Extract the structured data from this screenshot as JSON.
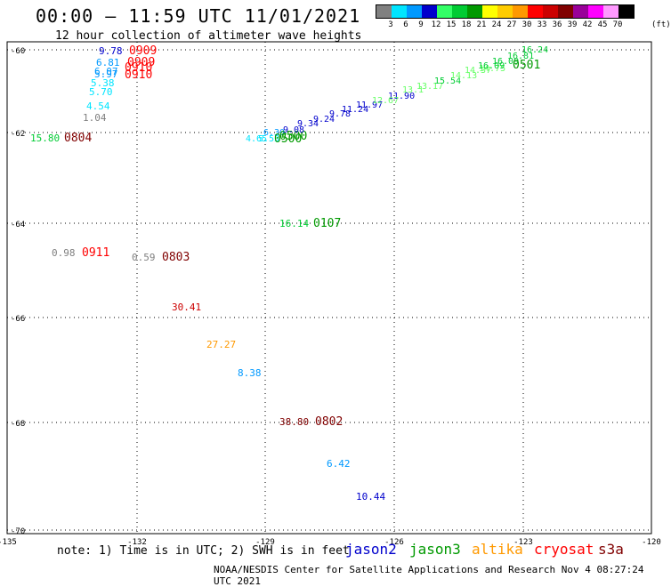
{
  "header": {
    "title": "00:00 – 11:59 UTC 11/01/2021",
    "subtitle": "12 hour collection of altimeter wave heights"
  },
  "legend": {
    "colors": [
      "#808080",
      "#00e5ff",
      "#0099ff",
      "#0000cc",
      "#33ff66",
      "#00cc33",
      "#009900",
      "#ffff00",
      "#ffcc00",
      "#ff9900",
      "#ff0000",
      "#cc0000",
      "#800000",
      "#990099",
      "#ff00ff",
      "#ff99ff",
      "#000000"
    ],
    "ticks": [
      "3",
      "6",
      "9",
      "12",
      "15",
      "18",
      "21",
      "24",
      "27",
      "30",
      "33",
      "36",
      "39",
      "42",
      "45",
      "70"
    ],
    "unit": "(ft)"
  },
  "axes": {
    "lat_labels": [
      "-60",
      "-62",
      "-64",
      "-66",
      "-68",
      "-70"
    ],
    "lon_labels": [
      "-135",
      "-132",
      "-129",
      "-126",
      "-123",
      "-120"
    ]
  },
  "observations": [
    {
      "text": "9.78",
      "color": "#0000cc"
    },
    {
      "text": "0909",
      "color": "#ff0000"
    },
    {
      "text": "6.81",
      "color": "#0099ff"
    },
    {
      "text": "0909",
      "color": "#ff0000"
    },
    {
      "text": "6.07",
      "color": "#0099ff"
    },
    {
      "text": "0910",
      "color": "#ff0000"
    },
    {
      "text": "5.97",
      "color": "#0099ff"
    },
    {
      "text": "0910",
      "color": "#ff0000"
    },
    {
      "text": "5.38",
      "color": "#00e5ff"
    },
    {
      "text": "5.70",
      "color": "#00e5ff"
    },
    {
      "text": "4.54",
      "color": "#00e5ff"
    },
    {
      "text": "1.04",
      "color": "#808080"
    },
    {
      "text": "15.80",
      "color": "#00cc33"
    },
    {
      "text": "0804",
      "color": "#800000"
    },
    {
      "text": "0.98",
      "color": "#808080"
    },
    {
      "text": "0911",
      "color": "#ff0000"
    },
    {
      "text": "0.59",
      "color": "#808080"
    },
    {
      "text": "0803",
      "color": "#800000"
    },
    {
      "text": "30.41",
      "color": "#cc0000"
    },
    {
      "text": "27.27",
      "color": "#ff9900"
    },
    {
      "text": "8.38",
      "color": "#0099ff"
    },
    {
      "text": "38.80",
      "color": "#800000"
    },
    {
      "text": "0802",
      "color": "#800000"
    },
    {
      "text": "6.42",
      "color": "#0099ff"
    },
    {
      "text": "10.44",
      "color": "#0000cc"
    },
    {
      "text": "16.14",
      "color": "#00cc33"
    },
    {
      "text": "0107",
      "color": "#009900"
    },
    {
      "text": "4.65",
      "color": "#00e5ff"
    },
    {
      "text": "5.53",
      "color": "#00e5ff"
    },
    {
      "text": "6.30",
      "color": "#0099ff"
    },
    {
      "text": "0500",
      "color": "#009900"
    },
    {
      "text": "0500",
      "color": "#009900"
    },
    {
      "text": "9.08",
      "color": "#0000cc"
    },
    {
      "text": "9.34",
      "color": "#0000cc"
    },
    {
      "text": "9.24",
      "color": "#0000cc"
    },
    {
      "text": "9.78",
      "color": "#0000cc"
    },
    {
      "text": "11.24",
      "color": "#0000cc"
    },
    {
      "text": "11.97",
      "color": "#0000cc"
    },
    {
      "text": "11.90",
      "color": "#0000cc"
    },
    {
      "text": "12.67",
      "color": "#66ff66"
    },
    {
      "text": "13.1",
      "color": "#66ff66"
    },
    {
      "text": "13.17",
      "color": "#66ff66"
    },
    {
      "text": "15.54",
      "color": "#00cc33"
    },
    {
      "text": "14.13",
      "color": "#66ff66"
    },
    {
      "text": "14.37",
      "color": "#66ff66"
    },
    {
      "text": "14.75",
      "color": "#66ff66"
    },
    {
      "text": "16.09",
      "color": "#00cc33"
    },
    {
      "text": "16.09",
      "color": "#00cc33"
    },
    {
      "text": "16.81",
      "color": "#00cc33"
    },
    {
      "text": "16.24",
      "color": "#00cc33"
    },
    {
      "text": "0501",
      "color": "#009900"
    }
  ],
  "footer": {
    "note": "note: 1) Time is in UTC; 2) SWH is in feet",
    "satellites": [
      {
        "name": "jason2",
        "color": "#0000cc"
      },
      {
        "name": "jason3",
        "color": "#009900"
      },
      {
        "name": "altika",
        "color": "#ff9900"
      },
      {
        "name": "cryosat",
        "color": "#ff0000"
      },
      {
        "name": "s3a",
        "color": "#800000"
      }
    ],
    "credit": "NOAA/NESDIS Center for Satellite Applications and Research    Nov  4 08:27:24 UTC 2021"
  }
}
